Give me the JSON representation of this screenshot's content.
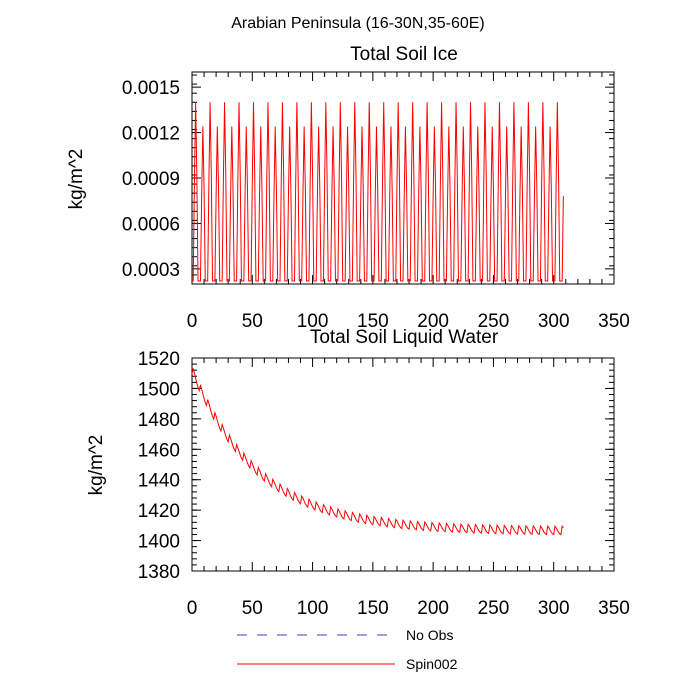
{
  "suptitle": "Arabian Peninsula (16-30N,35-60E)",
  "colors": {
    "spin": "#ff0000",
    "noobs": "#3b3bd0",
    "axis": "#000000"
  },
  "legend": [
    {
      "label": "No Obs",
      "style": "dashed",
      "color": "#3b3bd0"
    },
    {
      "label": "Spin002",
      "style": "solid",
      "color": "#ff0000"
    }
  ],
  "chart_data": [
    {
      "type": "line",
      "title": "Total Soil Ice",
      "ylabel": "kg/m^2",
      "xlabel": "",
      "xlim": [
        0,
        350
      ],
      "ylim": [
        0.0002,
        0.0016
      ],
      "xticks": [
        0,
        50,
        100,
        150,
        200,
        250,
        300,
        350
      ],
      "xtick_labels": [
        "0",
        "50",
        "100",
        "150",
        "200",
        "250",
        "300",
        "350"
      ],
      "yticks": [
        0.0003,
        0.0006,
        0.0009,
        0.0012,
        0.0015
      ],
      "ytick_labels": [
        "0.0003",
        "0.0006",
        "0.0009",
        "0.0012",
        "0.0015"
      ],
      "series": [
        {
          "name": "Spin002",
          "x_range": [
            0,
            308
          ],
          "period_months": 6,
          "peak_values": [
            0.0014,
            0.00124
          ],
          "trough_value": 0.00022
        }
      ]
    },
    {
      "type": "line",
      "title": "Total Soil Liquid Water",
      "ylabel": "kg/m^2",
      "xlabel": "",
      "xlim": [
        0,
        350
      ],
      "ylim": [
        1380,
        1520
      ],
      "xticks": [
        0,
        50,
        100,
        150,
        200,
        250,
        300,
        350
      ],
      "xtick_labels": [
        "0",
        "50",
        "100",
        "150",
        "200",
        "250",
        "300",
        "350"
      ],
      "yticks": [
        1380,
        1400,
        1420,
        1440,
        1460,
        1480,
        1500,
        1520
      ],
      "ytick_labels": [
        "1380",
        "1400",
        "1420",
        "1440",
        "1460",
        "1480",
        "1500",
        "1520"
      ],
      "series": [
        {
          "name": "Spin002",
          "x_range": [
            0,
            308
          ],
          "period_months": 6,
          "trend_start": 1512,
          "trend_end": 1406,
          "seasonal_amplitude": 10
        }
      ]
    }
  ]
}
